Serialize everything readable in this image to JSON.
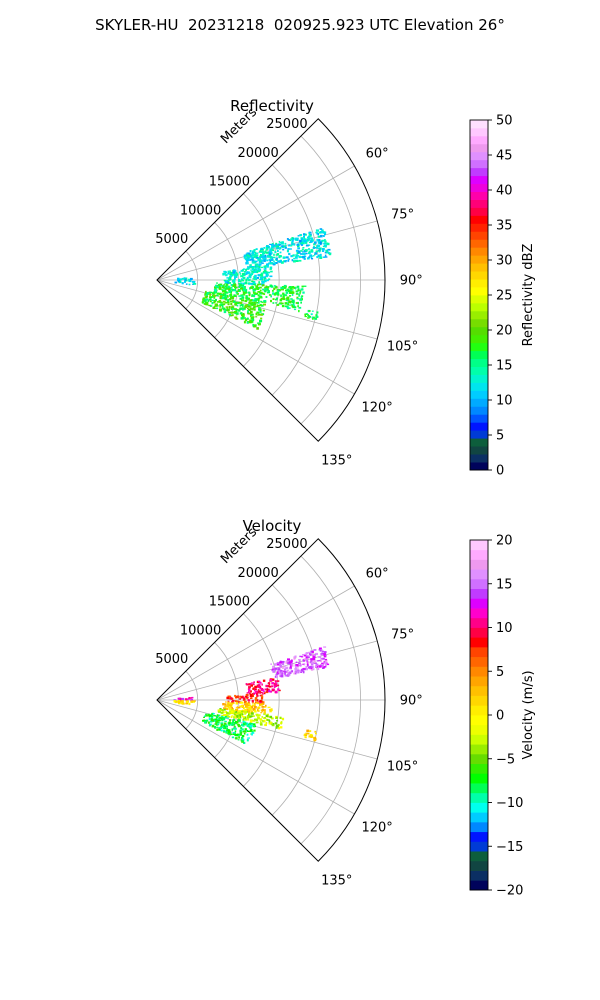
{
  "figure_title": "SKYLER-HU  20231218  020925.923 UTC Elevation 26°",
  "colors": {
    "grid": "#b0b0b0",
    "frame": "#000000"
  },
  "chart_data": [
    {
      "type": "polar-sector",
      "title": "Reflectivity",
      "radial_axis_label": "Meters",
      "radial_ticks": [
        5000,
        10000,
        15000,
        20000,
        25000
      ],
      "radial_tick_labels": [
        "5000",
        "10000",
        "15000",
        "20000",
        "25000"
      ],
      "r_max": 28000,
      "theta_range_deg": [
        45,
        135
      ],
      "angle_ticks": [
        60,
        75,
        90,
        105,
        120,
        135
      ],
      "angle_tick_labels": [
        "60°",
        "75°",
        "90°",
        "105°",
        "120°",
        "135°"
      ],
      "colorbar": {
        "label": "Reflectivity dBZ",
        "min": 0,
        "max": 50,
        "ticks": [
          0,
          5,
          10,
          15,
          20,
          25,
          30,
          35,
          40,
          45,
          50
        ],
        "tick_labels": [
          "0",
          "5",
          "10",
          "15",
          "20",
          "25",
          "30",
          "35",
          "40",
          "45",
          "50"
        ],
        "colors": [
          "#00035b",
          "#0b2f63",
          "#114542",
          "#0d5e3c",
          "#003bd6",
          "#0015ff",
          "#0055ff",
          "#0088ff",
          "#00aaff",
          "#00ccff",
          "#00e5ee",
          "#00f5d0",
          "#00ffaa",
          "#00ff88",
          "#00ff55",
          "#22ff11",
          "#44ee00",
          "#55dd00",
          "#77dd00",
          "#99ee00",
          "#bbff00",
          "#ddff00",
          "#ffff00",
          "#ffee00",
          "#ffd700",
          "#ffc000",
          "#ffa500",
          "#ff8800",
          "#ff6600",
          "#ff4400",
          "#ff2200",
          "#ff0000",
          "#ff0044",
          "#ff0077",
          "#ff00aa",
          "#ee00dd",
          "#dd00ff",
          "#c03bff",
          "#d070ff",
          "#e090ff",
          "#ee99ee",
          "#ffaaff",
          "#ffc8ff",
          "#ffe0ff"
        ]
      },
      "echoes": [
        {
          "range_m": [
            2000,
            4500
          ],
          "theta_deg": [
            83,
            97
          ],
          "value": 12
        },
        {
          "range_m": [
            11000,
            21500
          ],
          "theta_deg": [
            72,
            82
          ],
          "value": 12
        },
        {
          "range_m": [
            8000,
            14000
          ],
          "theta_deg": [
            82,
            92
          ],
          "value": 13
        },
        {
          "range_m": [
            7000,
            18000
          ],
          "theta_deg": [
            92,
            102
          ],
          "value": 17
        },
        {
          "range_m": [
            6000,
            13500
          ],
          "theta_deg": [
            102,
            116
          ],
          "value": 18
        },
        {
          "range_m": [
            18500,
            20000
          ],
          "theta_deg": [
            101,
            104
          ],
          "value": 16
        }
      ]
    },
    {
      "type": "polar-sector",
      "title": "Velocity",
      "radial_axis_label": "Meters",
      "radial_ticks": [
        5000,
        10000,
        15000,
        20000,
        25000
      ],
      "radial_tick_labels": [
        "5000",
        "10000",
        "15000",
        "20000",
        "25000"
      ],
      "r_max": 28000,
      "theta_range_deg": [
        45,
        135
      ],
      "angle_ticks": [
        60,
        75,
        90,
        105,
        120,
        135
      ],
      "angle_tick_labels": [
        "60°",
        "75°",
        "90°",
        "105°",
        "120°",
        "135°"
      ],
      "colorbar": {
        "label": "Velocity (m/s)",
        "min": -20,
        "max": 20,
        "ticks": [
          -20,
          -15,
          -10,
          -5,
          0,
          5,
          10,
          15,
          20
        ],
        "tick_labels": [
          "−20",
          "−15",
          "−10",
          "−5",
          "0",
          "5",
          "10",
          "15",
          "20"
        ],
        "colors": [
          "#00035b",
          "#0b2f63",
          "#114542",
          "#0d5e3c",
          "#003bd6",
          "#0015ff",
          "#0088ff",
          "#00ccff",
          "#00ffee",
          "#00ffaa",
          "#00ff55",
          "#00ff00",
          "#33ee00",
          "#66dd00",
          "#99ee00",
          "#ccff00",
          "#eeff00",
          "#ffff00",
          "#ffee00",
          "#ffd700",
          "#ffc000",
          "#ffa500",
          "#ff8800",
          "#ff6600",
          "#ff4400",
          "#ff0000",
          "#ff0044",
          "#ff0088",
          "#ff00cc",
          "#dd00ff",
          "#c03bff",
          "#d070ff",
          "#e090ff",
          "#ee99ee",
          "#ffaaff",
          "#ffc8ff"
        ]
      },
      "echoes": [
        {
          "range_m": [
            2000,
            4500
          ],
          "theta_deg": [
            83,
            90
          ],
          "value": 12
        },
        {
          "range_m": [
            2000,
            4500
          ],
          "theta_deg": [
            90,
            97
          ],
          "value": 1
        },
        {
          "range_m": [
            14500,
            21500
          ],
          "theta_deg": [
            72,
            79
          ],
          "value": 15
        },
        {
          "range_m": [
            11000,
            15000
          ],
          "theta_deg": [
            79,
            86
          ],
          "value": 10
        },
        {
          "range_m": [
            8500,
            13000
          ],
          "theta_deg": [
            86,
            91
          ],
          "value": 8
        },
        {
          "range_m": [
            8000,
            14000
          ],
          "theta_deg": [
            91,
            97
          ],
          "value": 2
        },
        {
          "range_m": [
            7500,
            15500
          ],
          "theta_deg": [
            97,
            103
          ],
          "value": -3
        },
        {
          "range_m": [
            6000,
            12500
          ],
          "theta_deg": [
            103,
            116
          ],
          "value": -8
        },
        {
          "range_m": [
            18500,
            20000
          ],
          "theta_deg": [
            101,
            104
          ],
          "value": 2
        }
      ]
    }
  ]
}
